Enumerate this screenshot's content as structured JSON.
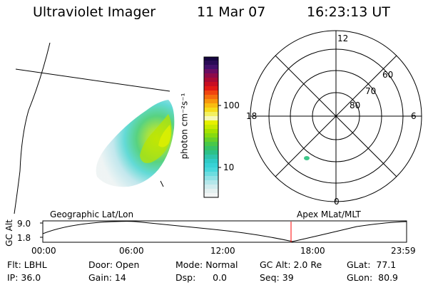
{
  "header": {
    "title": "Ultraviolet Imager",
    "date": "11 Mar 07",
    "time": "16:23:13 UT"
  },
  "colorbar": {
    "unit_label": "photon cm⁻²s⁻¹",
    "ticks": [
      "100",
      "10"
    ]
  },
  "polar_plot": {
    "mlt_labels": [
      "12",
      "18",
      "6",
      "0"
    ],
    "mlat_labels": [
      "60",
      "70",
      "80"
    ]
  },
  "timeline": {
    "left_title": "Geographic Lat/Lon",
    "right_title": "Apex MLat/MLT",
    "y_axis_label": "GC Alt",
    "y_ticks": [
      "9.0",
      "1.8"
    ],
    "x_ticks": [
      "00:00",
      "06:00",
      "12:00",
      "18:00",
      "23:59"
    ],
    "current_time_marker": "16:23"
  },
  "info": {
    "flt": "Flt: LBHL",
    "ip": "IP: 36.0",
    "door": "Door: Open",
    "gain": "Gain: 14",
    "mode": "Mode: Normal",
    "dsp": "Dsp:      0.0",
    "gc_alt": "GC Alt: 2.0 Re",
    "seq": "Seq: 39",
    "glat": "GLat:  77.1",
    "glon": "GLon:  80.9"
  },
  "colors": {
    "marker": "#ff0000",
    "aurora_bright": "#c8e800",
    "aurora_mid": "#6ccf4a",
    "aurora_low": "#55d6d0",
    "aurora_faint": "#c5e9ee"
  }
}
